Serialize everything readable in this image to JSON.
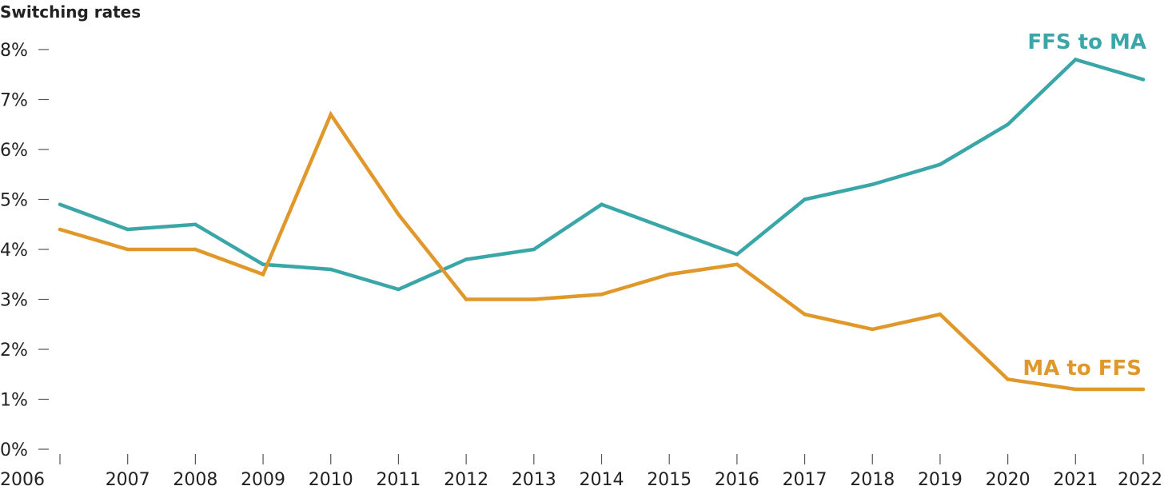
{
  "chart_data": {
    "type": "line",
    "title": "Switching rates",
    "xlabel": "",
    "ylabel": "",
    "x": [
      "2006",
      "2007",
      "2008",
      "2009",
      "2010",
      "2011",
      "2012",
      "2013",
      "2014",
      "2015",
      "2016",
      "2017",
      "2018",
      "2019",
      "2020",
      "2021",
      "2022"
    ],
    "ylim": [
      0,
      8
    ],
    "yticks": [
      0,
      1,
      2,
      3,
      4,
      5,
      6,
      7,
      8
    ],
    "ytick_labels": [
      "0%",
      "1%",
      "2%",
      "3%",
      "4%",
      "5%",
      "6%",
      "7%",
      "8%"
    ],
    "grid": false,
    "legend": "direct labels at line ends",
    "series": [
      {
        "name": "FFS to MA",
        "color": "#3aa6a8",
        "values": [
          4.9,
          4.4,
          4.5,
          3.7,
          3.6,
          3.2,
          3.8,
          4.0,
          4.9,
          4.4,
          3.9,
          5.0,
          5.3,
          5.7,
          6.5,
          7.8,
          7.4
        ]
      },
      {
        "name": "MA to FFS",
        "color": "#e0982a",
        "values": [
          4.4,
          4.0,
          4.0,
          3.5,
          6.7,
          4.7,
          3.0,
          3.0,
          3.1,
          3.5,
          3.7,
          2.7,
          2.4,
          2.7,
          1.4,
          1.2,
          1.2
        ]
      }
    ]
  }
}
